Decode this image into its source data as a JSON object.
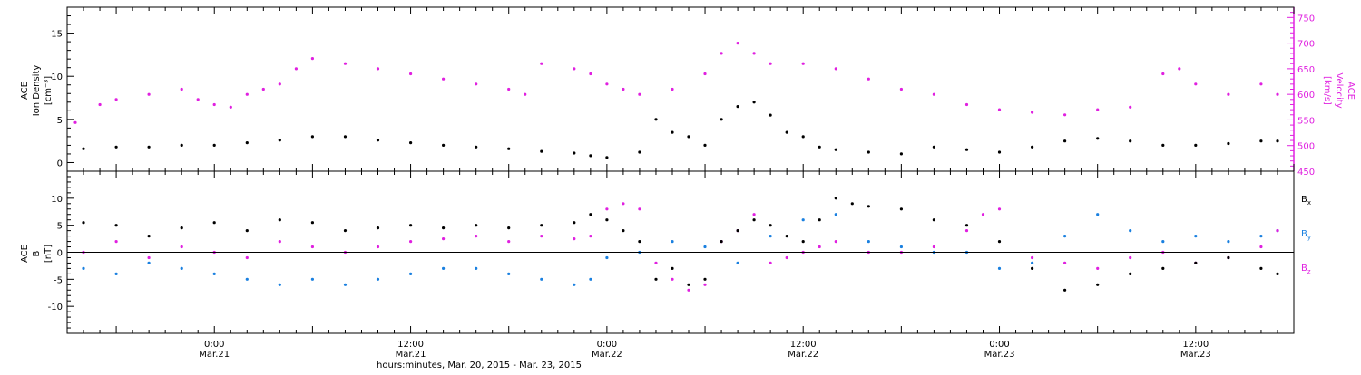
{
  "colors": {
    "density": "#000000",
    "velocity": "#e020e0",
    "bx": "#000000",
    "by": "#1a80e0",
    "bz": "#e020e0",
    "axis": "#000000",
    "background": "#ffffff"
  },
  "xaxis": {
    "caption": "hours:minutes, Mar. 20, 2015 - Mar. 23, 2015",
    "range_hours": [
      -9,
      66
    ],
    "ticks": [
      {
        "hours": 0,
        "time": "0:00",
        "date": "Mar.21"
      },
      {
        "hours": 12,
        "time": "12:00",
        "date": "Mar.21"
      },
      {
        "hours": 24,
        "time": "0:00",
        "date": "Mar.22"
      },
      {
        "hours": 36,
        "time": "12:00",
        "date": "Mar.22"
      },
      {
        "hours": 48,
        "time": "0:00",
        "date": "Mar.23"
      },
      {
        "hours": 60,
        "time": "12:00",
        "date": "Mar.23"
      }
    ]
  },
  "top_panel": {
    "left_label": [
      "ACE",
      "Ion Density",
      "[cm⁻³]"
    ],
    "right_label": [
      "ACE",
      "Velocity",
      "[km/s]"
    ],
    "left_ticks": [
      "0",
      "5",
      "10",
      "15"
    ],
    "right_ticks": [
      "450",
      "500",
      "550",
      "600",
      "650",
      "700",
      "750"
    ]
  },
  "bottom_panel": {
    "left_label": [
      "ACE",
      "B",
      "[nT]"
    ],
    "left_ticks": [
      "-10",
      "-5",
      "0",
      "5",
      "10"
    ],
    "legend": [
      {
        "label": "B",
        "sub": "x"
      },
      {
        "label": "B",
        "sub": "y"
      },
      {
        "label": "B",
        "sub": "z"
      }
    ]
  },
  "chart_data": [
    {
      "type": "scatter",
      "title": "",
      "xlabel": "hours:minutes, Mar. 20, 2015 - Mar. 23, 2015",
      "x_units": "hours since 0:00 Mar.21 2015",
      "ylim": [
        -1,
        18
      ],
      "y2lim": [
        450,
        770
      ],
      "series": [
        {
          "name": "Ion Density",
          "axis": "left",
          "x": [
            -8,
            -6,
            -4,
            -2,
            0,
            2,
            4,
            6,
            8,
            10,
            12,
            14,
            16,
            18,
            20,
            22,
            23,
            24,
            26,
            27,
            28,
            29,
            30,
            31,
            32,
            33,
            34,
            35,
            36,
            37,
            38,
            40,
            42,
            44,
            46,
            48,
            50,
            52,
            54,
            56,
            58,
            60,
            62,
            64,
            65
          ],
          "values": [
            1.6,
            1.8,
            1.8,
            2.0,
            2.0,
            2.3,
            2.6,
            3.0,
            3.0,
            2.6,
            2.3,
            2.0,
            1.8,
            1.6,
            1.3,
            1.1,
            0.8,
            0.6,
            1.2,
            5.0,
            3.5,
            3.0,
            2.0,
            5.0,
            6.5,
            7.0,
            5.5,
            3.5,
            3.0,
            1.8,
            1.5,
            1.2,
            1.0,
            1.8,
            1.5,
            1.2,
            1.8,
            2.5,
            2.8,
            2.5,
            2.0,
            2.0,
            2.2,
            2.5,
            2.5
          ]
        },
        {
          "name": "Velocity",
          "axis": "right",
          "x": [
            -8.5,
            -7,
            -6,
            -4,
            -2,
            -1,
            0,
            1,
            2,
            3,
            4,
            5,
            6,
            8,
            10,
            12,
            14,
            16,
            18,
            19,
            20,
            22,
            23,
            24,
            25,
            26,
            28,
            30,
            31,
            32,
            33,
            34,
            36,
            38,
            40,
            42,
            44,
            46,
            48,
            50,
            52,
            54,
            56,
            58,
            59,
            60,
            62,
            64,
            65
          ],
          "values": [
            545,
            580,
            590,
            600,
            610,
            590,
            580,
            575,
            600,
            610,
            620,
            650,
            670,
            660,
            650,
            640,
            630,
            620,
            610,
            600,
            660,
            650,
            640,
            620,
            610,
            600,
            610,
            640,
            680,
            700,
            680,
            660,
            660,
            650,
            630,
            610,
            600,
            580,
            570,
            565,
            560,
            570,
            575,
            640,
            650,
            620,
            600,
            620,
            600
          ]
        }
      ]
    },
    {
      "type": "scatter",
      "title": "",
      "xlabel": "hours:minutes, Mar. 20, 2015 - Mar. 23, 2015",
      "x_units": "hours since 0:00 Mar.21 2015",
      "ylim": [
        -15,
        15
      ],
      "series": [
        {
          "name": "Bx",
          "x": [
            -8,
            -6,
            -4,
            -2,
            0,
            2,
            4,
            6,
            8,
            10,
            12,
            14,
            16,
            18,
            20,
            22,
            23,
            24,
            25,
            26,
            27,
            28,
            29,
            30,
            31,
            32,
            33,
            34,
            35,
            36,
            37,
            38,
            39,
            40,
            42,
            44,
            46,
            48,
            50,
            52,
            54,
            56,
            58,
            60,
            62,
            64,
            65
          ],
          "values": [
            5.5,
            5.0,
            3.0,
            4.5,
            5.5,
            4.0,
            6.0,
            5.5,
            4.0,
            4.5,
            5.0,
            4.5,
            5.0,
            4.5,
            5.0,
            5.5,
            7.0,
            6.0,
            4.0,
            2.0,
            -5.0,
            -3.0,
            -6.0,
            -5.0,
            2.0,
            4.0,
            6.0,
            5.0,
            3.0,
            2.0,
            6.0,
            10.0,
            9.0,
            8.5,
            8.0,
            6.0,
            5.0,
            2.0,
            -3.0,
            -7.0,
            -6.0,
            -4.0,
            -3.0,
            -2.0,
            -1.0,
            -3.0,
            -4.0
          ]
        },
        {
          "name": "By",
          "x": [
            -8,
            -6,
            -4,
            -2,
            0,
            2,
            4,
            6,
            8,
            10,
            12,
            14,
            16,
            18,
            20,
            22,
            23,
            24,
            26,
            28,
            30,
            32,
            34,
            36,
            38,
            40,
            42,
            44,
            46,
            48,
            50,
            52,
            54,
            56,
            58,
            60,
            62,
            64,
            65
          ],
          "values": [
            -3.0,
            -4.0,
            -2.0,
            -3.0,
            -4.0,
            -5.0,
            -6.0,
            -5.0,
            -6.0,
            -5.0,
            -4.0,
            -3.0,
            -3.0,
            -4.0,
            -5.0,
            -6.0,
            -5.0,
            -1.0,
            0.0,
            2.0,
            1.0,
            -2.0,
            3.0,
            6.0,
            7.0,
            2.0,
            1.0,
            0.0,
            0.0,
            -3.0,
            -2.0,
            3.0,
            7.0,
            4.0,
            2.0,
            3.0,
            2.0,
            3.0,
            4.0
          ]
        },
        {
          "name": "Bz",
          "x": [
            -8,
            -6,
            -4,
            -2,
            0,
            2,
            4,
            6,
            8,
            10,
            12,
            14,
            16,
            18,
            20,
            22,
            23,
            24,
            25,
            26,
            27,
            28,
            29,
            30,
            31,
            32,
            33,
            34,
            35,
            36,
            37,
            38,
            40,
            42,
            44,
            46,
            47,
            48,
            50,
            52,
            54,
            56,
            58,
            60,
            62,
            64,
            65
          ],
          "values": [
            0.0,
            2.0,
            -1.0,
            1.0,
            0.0,
            -1.0,
            2.0,
            1.0,
            0.0,
            1.0,
            2.0,
            2.5,
            3.0,
            2.0,
            3.0,
            2.5,
            3.0,
            8.0,
            9.0,
            8.0,
            -2.0,
            -5.0,
            -7.0,
            -6.0,
            2.0,
            4.0,
            7.0,
            -2.0,
            -1.0,
            0.0,
            1.0,
            2.0,
            0.0,
            0.0,
            1.0,
            4.0,
            7.0,
            8.0,
            -1.0,
            -2.0,
            -3.0,
            -1.0,
            0.0,
            -2.0,
            -1.0,
            1.0,
            4.0
          ]
        }
      ]
    }
  ]
}
